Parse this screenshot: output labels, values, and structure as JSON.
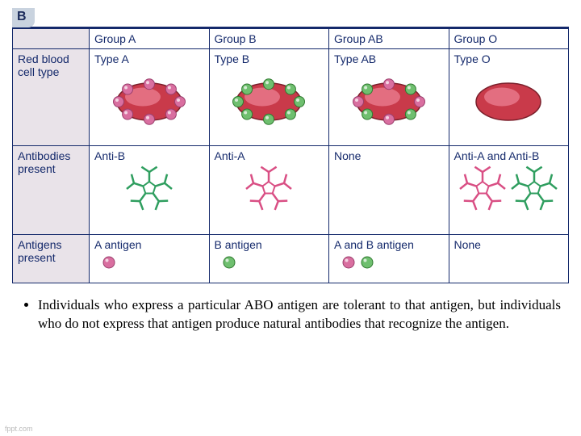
{
  "panel_letter": "B",
  "columns": [
    "Group A",
    "Group B",
    "Group AB",
    "Group O"
  ],
  "rows": {
    "cell_type": {
      "header": "Red blood cell type",
      "values": [
        "Type A",
        "Type B",
        "Type AB",
        "Type O"
      ]
    },
    "antibodies": {
      "header": "Antibodies present",
      "values": [
        "Anti-B",
        "Anti-A",
        "None",
        "Anti-A and Anti-B"
      ]
    },
    "antigens": {
      "header": "Antigens present",
      "values": [
        "A antigen",
        "B antigen",
        "A and B antigen",
        "None"
      ]
    }
  },
  "colors": {
    "cell_body": "#c93a4a",
    "cell_highlight": "#e7788a",
    "cell_edge": "#7a1f2b",
    "antigen_A": "#d96fa0",
    "antigen_A_edge": "#9b3f6d",
    "antigen_B": "#6fbf6f",
    "antigen_B_edge": "#2f7a2f",
    "antibody_A": "#d94f84",
    "antibody_B": "#2f9e5f",
    "border": "#14296b"
  },
  "bullet_text": "Individuals who express a particular ABO antigen are tolerant to that antigen, but individuals who do not express that antigen produce natural antibodies that recognize the antigen.",
  "footer": "fppt.com",
  "cell_visuals": {
    "A": {
      "antigens": [
        "A"
      ]
    },
    "B": {
      "antigens": [
        "B"
      ]
    },
    "AB": {
      "antigens": [
        "A",
        "B"
      ]
    },
    "O": {
      "antigens": []
    }
  },
  "antibody_visuals": {
    "A": [
      "B"
    ],
    "B": [
      "A"
    ],
    "AB": [],
    "O": [
      "A",
      "B"
    ]
  },
  "antigen_dot_visuals": {
    "A": [
      "A"
    ],
    "B": [
      "B"
    ],
    "AB": [
      "A",
      "B"
    ],
    "O": []
  }
}
